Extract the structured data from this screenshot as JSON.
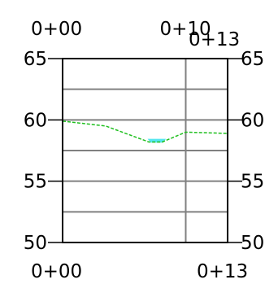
{
  "chart_data": {
    "type": "line",
    "title": "",
    "xlabel": "",
    "ylabel": "",
    "xlim": [
      0,
      13.4
    ],
    "ylim": [
      50,
      65
    ],
    "y_ticks": [
      50,
      55,
      60,
      65
    ],
    "y_tick_labels": [
      "50",
      "55",
      "60",
      "65"
    ],
    "y_gridlines": [
      52.5,
      55,
      57.5,
      60,
      62.5
    ],
    "x_gridlines": [
      10
    ],
    "top_station_labels": [
      {
        "x": 0,
        "label": "0+00"
      },
      {
        "x": 10,
        "label": "0+10"
      },
      {
        "x": 13.4,
        "label": "0+13"
      }
    ],
    "bottom_station_labels": [
      {
        "x": 0,
        "label": "0+00"
      },
      {
        "x": 13.4,
        "label": "0+13"
      }
    ],
    "grid": true,
    "legend": "none",
    "series": [
      {
        "style": "dashed",
        "color": "#1fbf1f",
        "x": [
          0,
          3.5,
          7.0,
          8.1,
          10.0,
          13.4
        ],
        "y": [
          59.9,
          59.5,
          58.2,
          58.2,
          59.0,
          58.9
        ]
      }
    ],
    "fill_regions": [
      {
        "color": "#55e6f0",
        "x": [
          6.9,
          8.4
        ],
        "y_bottom": 58.15,
        "y_top": 58.45
      }
    ],
    "colors": {
      "frame": "#000000",
      "grid": "#808080",
      "profile": "#1fbf1f",
      "fill": "#55e6f0"
    }
  }
}
